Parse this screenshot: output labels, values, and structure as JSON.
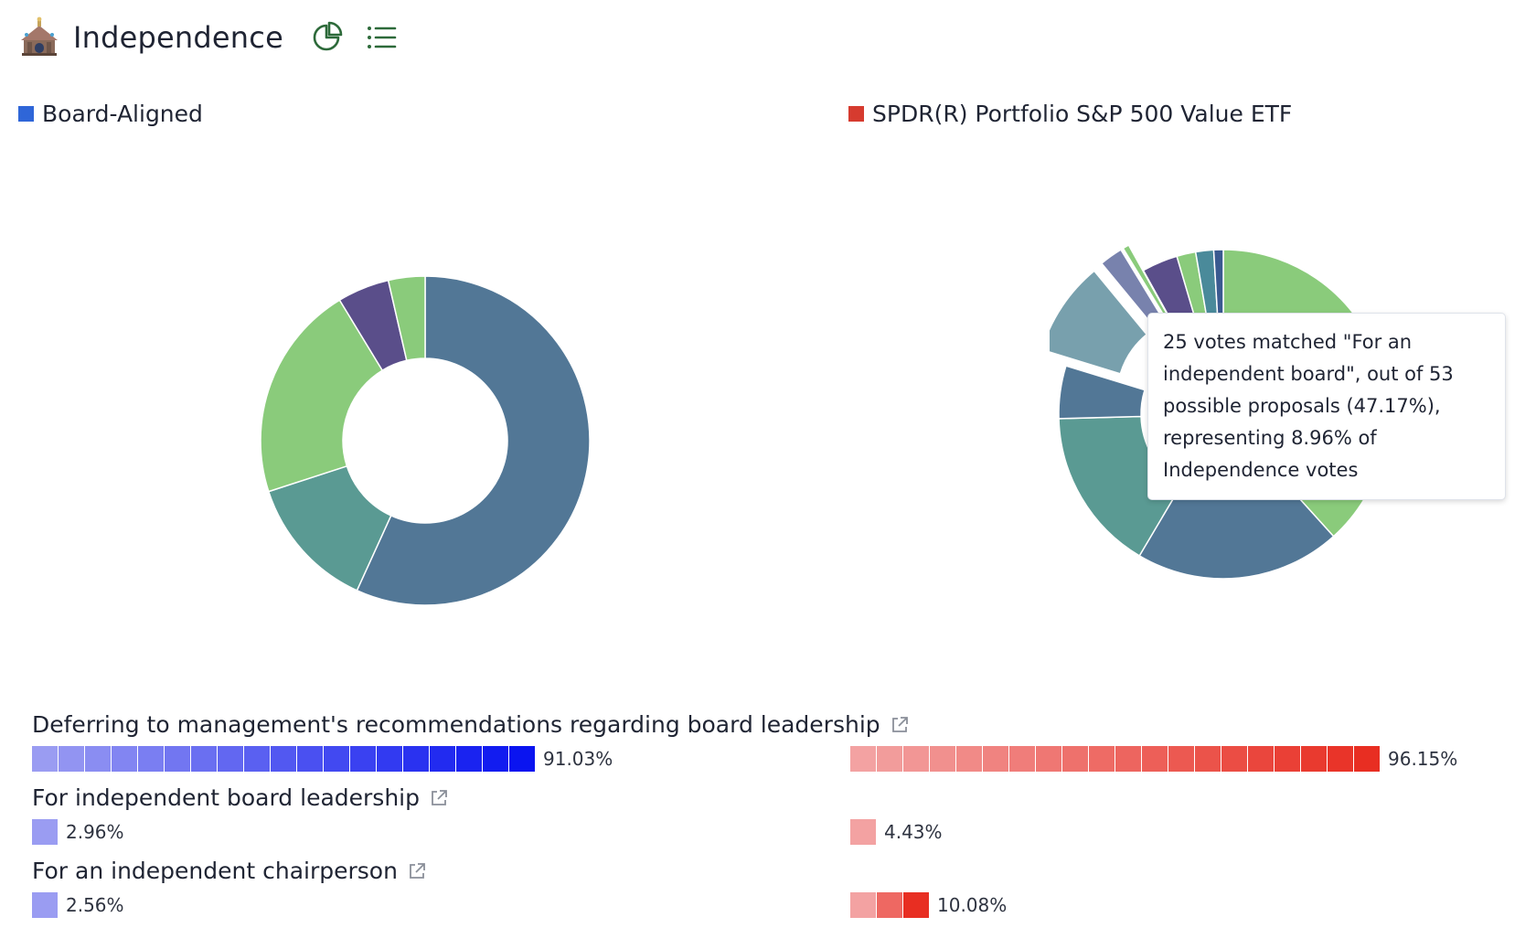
{
  "header": {
    "title": "Independence",
    "icons": [
      "building-icon",
      "pie-chart-icon",
      "list-icon"
    ]
  },
  "legend": {
    "left": {
      "label": "Board-Aligned",
      "color": "#2f66d8"
    },
    "right": {
      "label": "SPDR(R) Portfolio S&P 500 Value ETF",
      "color": "#d63b2f"
    }
  },
  "colors": {
    "blue_bar_start": "#9a9cf2",
    "blue_bar_end": "#0a14f0",
    "red_bar_start": "#f3a2a2",
    "red_bar_end": "#e82e22"
  },
  "chart_data": [
    {
      "type": "pie",
      "title": "",
      "slices": [
        {
          "value": 56.8,
          "color": "#527796"
        },
        {
          "value": 13.2,
          "color": "#5a9a93"
        },
        {
          "value": 21.3,
          "color": "#8acb7b"
        },
        {
          "value": 5.1,
          "color": "#5a4e8a"
        },
        {
          "value": 3.6,
          "color": "#8acb7b"
        }
      ]
    },
    {
      "type": "pie",
      "title": "",
      "slices": [
        {
          "value": 37.0,
          "color": "#8acb7b"
        },
        {
          "value": 19.5,
          "color": "#527796"
        },
        {
          "value": 15.5,
          "color": "#5a9a93"
        },
        {
          "value": 5.0,
          "color": "#527796"
        },
        {
          "value": 8.96,
          "color": "#78a0ad",
          "highlighted": true
        },
        {
          "value": 2.2,
          "color": "#7882ad",
          "highlighted": true
        },
        {
          "value": 0.6,
          "color": "#8acb7b",
          "highlighted": true
        },
        {
          "value": 3.4,
          "color": "#5a4e8a"
        },
        {
          "value": 1.8,
          "color": "#8acb7b"
        },
        {
          "value": 1.7,
          "color": "#4a8a9a"
        },
        {
          "value": 0.9,
          "color": "#3a5a90"
        }
      ]
    }
  ],
  "tooltip": {
    "text": "25 votes matched \"For an independent board\", out of 53 possible proposals (47.17%), representing 8.96% of Independence votes"
  },
  "rows": [
    {
      "title": "Deferring to management's recommendations regarding board leadership",
      "left": {
        "pct": "91.03%",
        "cells": 19
      },
      "right": {
        "pct": "96.15%",
        "cells": 20
      }
    },
    {
      "title": "For independent board leadership",
      "left": {
        "pct": "2.96%",
        "cells": 1
      },
      "right": {
        "pct": "4.43%",
        "cells": 1
      }
    },
    {
      "title": "For an independent chairperson",
      "left": {
        "pct": "2.56%",
        "cells": 1
      },
      "right": {
        "pct": "10.08%",
        "cells": 3
      }
    }
  ]
}
